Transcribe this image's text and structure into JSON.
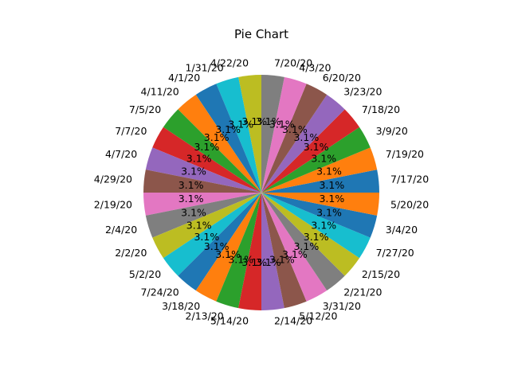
{
  "chart_data": {
    "type": "pie",
    "title": "Pie Chart",
    "labels": [
      "7/17/20",
      "7/19/20",
      "3/9/20",
      "7/18/20",
      "3/23/20",
      "6/20/20",
      "4/3/20",
      "7/20/20",
      "4/22/20",
      "1/31/20",
      "4/1/20",
      "4/11/20",
      "7/5/20",
      "7/7/20",
      "4/7/20",
      "4/29/20",
      "2/19/20",
      "2/4/20",
      "2/2/20",
      "5/2/20",
      "7/24/20",
      "3/18/20",
      "2/13/20",
      "5/14/20",
      "2/14/20",
      "5/12/20",
      "3/31/20",
      "2/21/20",
      "2/15/20",
      "7/27/20",
      "3/4/20",
      "5/20/20"
    ],
    "values": [
      1,
      1,
      1,
      1,
      1,
      1,
      1,
      1,
      1,
      1,
      1,
      1,
      1,
      1,
      1,
      1,
      1,
      1,
      1,
      1,
      1,
      1,
      1,
      1,
      1,
      1,
      1,
      1,
      1,
      1,
      1,
      1
    ],
    "percent_labels": [
      "3.1%",
      "3.1%",
      "3.1%",
      "3.1%",
      "3.1%",
      "3.1%",
      "3.1%",
      "3.1%",
      "3.1%",
      "3.1%",
      "3.1%",
      "3.1%",
      "3.1%",
      "3.1%",
      "3.1%",
      "3.1%",
      "3.1%",
      "3.1%",
      "3.1%",
      "3.1%",
      "3.1%",
      "3.1%",
      "3.1%",
      "3.1%",
      "3.1%",
      "3.1%",
      "3.1%",
      "3.1%",
      "3.1%",
      "3.1%",
      "3.1%",
      "3.1%"
    ],
    "colors": [
      "#1f77b4",
      "#ff7f0e",
      "#2ca02c",
      "#d62728",
      "#9467bd",
      "#8c564b",
      "#e377c2",
      "#7f7f7f",
      "#bcbd22",
      "#17becf"
    ],
    "start_angle_deg": 0,
    "direction": "counterclockwise",
    "legend": "none"
  }
}
